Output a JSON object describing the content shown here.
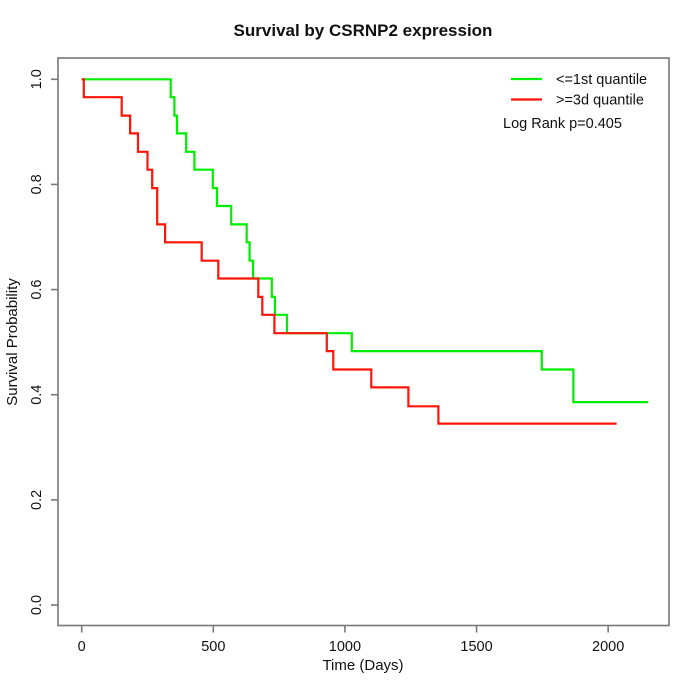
{
  "title": "Survival by CSRNP2 expression",
  "colors": {
    "background": "#ffffff",
    "axis": "#787878",
    "text": "#111111",
    "green_series": "#00ee00",
    "red_series": "#ff1407"
  },
  "axes": {
    "x": {
      "label": "Time (Days)",
      "tick_labels": [
        "0",
        "500",
        "1000",
        "1500",
        "2000"
      ]
    },
    "y": {
      "label": "Survival Probability",
      "tick_labels": [
        "0.0",
        "0.2",
        "0.4",
        "0.6",
        "0.8",
        "1.0"
      ]
    }
  },
  "legend": {
    "items": [
      {
        "label": "<=1st quantile",
        "color": "#00ee00"
      },
      {
        "label": ">=3d quantile",
        "color": "#ff1407"
      }
    ],
    "annotation": "Log Rank p=0.405"
  },
  "chart_data": {
    "type": "line",
    "variant": "kaplan_meier_step",
    "title": "Survival by CSRNP2 expression",
    "xlabel": "Time (Days)",
    "ylabel": "Survival Probability",
    "xlim": [
      0,
      2150
    ],
    "ylim": [
      0,
      1
    ],
    "x_ticks": [
      0,
      500,
      1000,
      1500,
      2000
    ],
    "y_ticks": [
      0.0,
      0.2,
      0.4,
      0.6,
      0.8,
      1.0
    ],
    "grid": false,
    "legend_position": "top-right",
    "annotation": "Log Rank p=0.405",
    "series": [
      {
        "name": "<=1st quantile",
        "color": "#00ee00",
        "points": [
          [
            0,
            1.0
          ],
          [
            338,
            0.966
          ],
          [
            352,
            0.931
          ],
          [
            362,
            0.897
          ],
          [
            397,
            0.862
          ],
          [
            428,
            0.828
          ],
          [
            498,
            0.793
          ],
          [
            514,
            0.759
          ],
          [
            568,
            0.724
          ],
          [
            627,
            0.69
          ],
          [
            638,
            0.655
          ],
          [
            651,
            0.621
          ],
          [
            722,
            0.586
          ],
          [
            734,
            0.552
          ],
          [
            780,
            0.517
          ],
          [
            1026,
            0.483
          ],
          [
            1748,
            0.448
          ],
          [
            1868,
            0.386
          ],
          [
            2152,
            0.386
          ]
        ]
      },
      {
        "name": ">=3d quantile",
        "color": "#ff1407",
        "points": [
          [
            0,
            1.0
          ],
          [
            8,
            0.966
          ],
          [
            152,
            0.931
          ],
          [
            184,
            0.897
          ],
          [
            214,
            0.862
          ],
          [
            250,
            0.828
          ],
          [
            268,
            0.793
          ],
          [
            287,
            0.724
          ],
          [
            317,
            0.69
          ],
          [
            456,
            0.655
          ],
          [
            519,
            0.621
          ],
          [
            671,
            0.586
          ],
          [
            686,
            0.552
          ],
          [
            732,
            0.517
          ],
          [
            931,
            0.483
          ],
          [
            956,
            0.448
          ],
          [
            1100,
            0.414
          ],
          [
            1241,
            0.378
          ],
          [
            1355,
            0.345
          ],
          [
            2032,
            0.345
          ]
        ]
      }
    ]
  }
}
